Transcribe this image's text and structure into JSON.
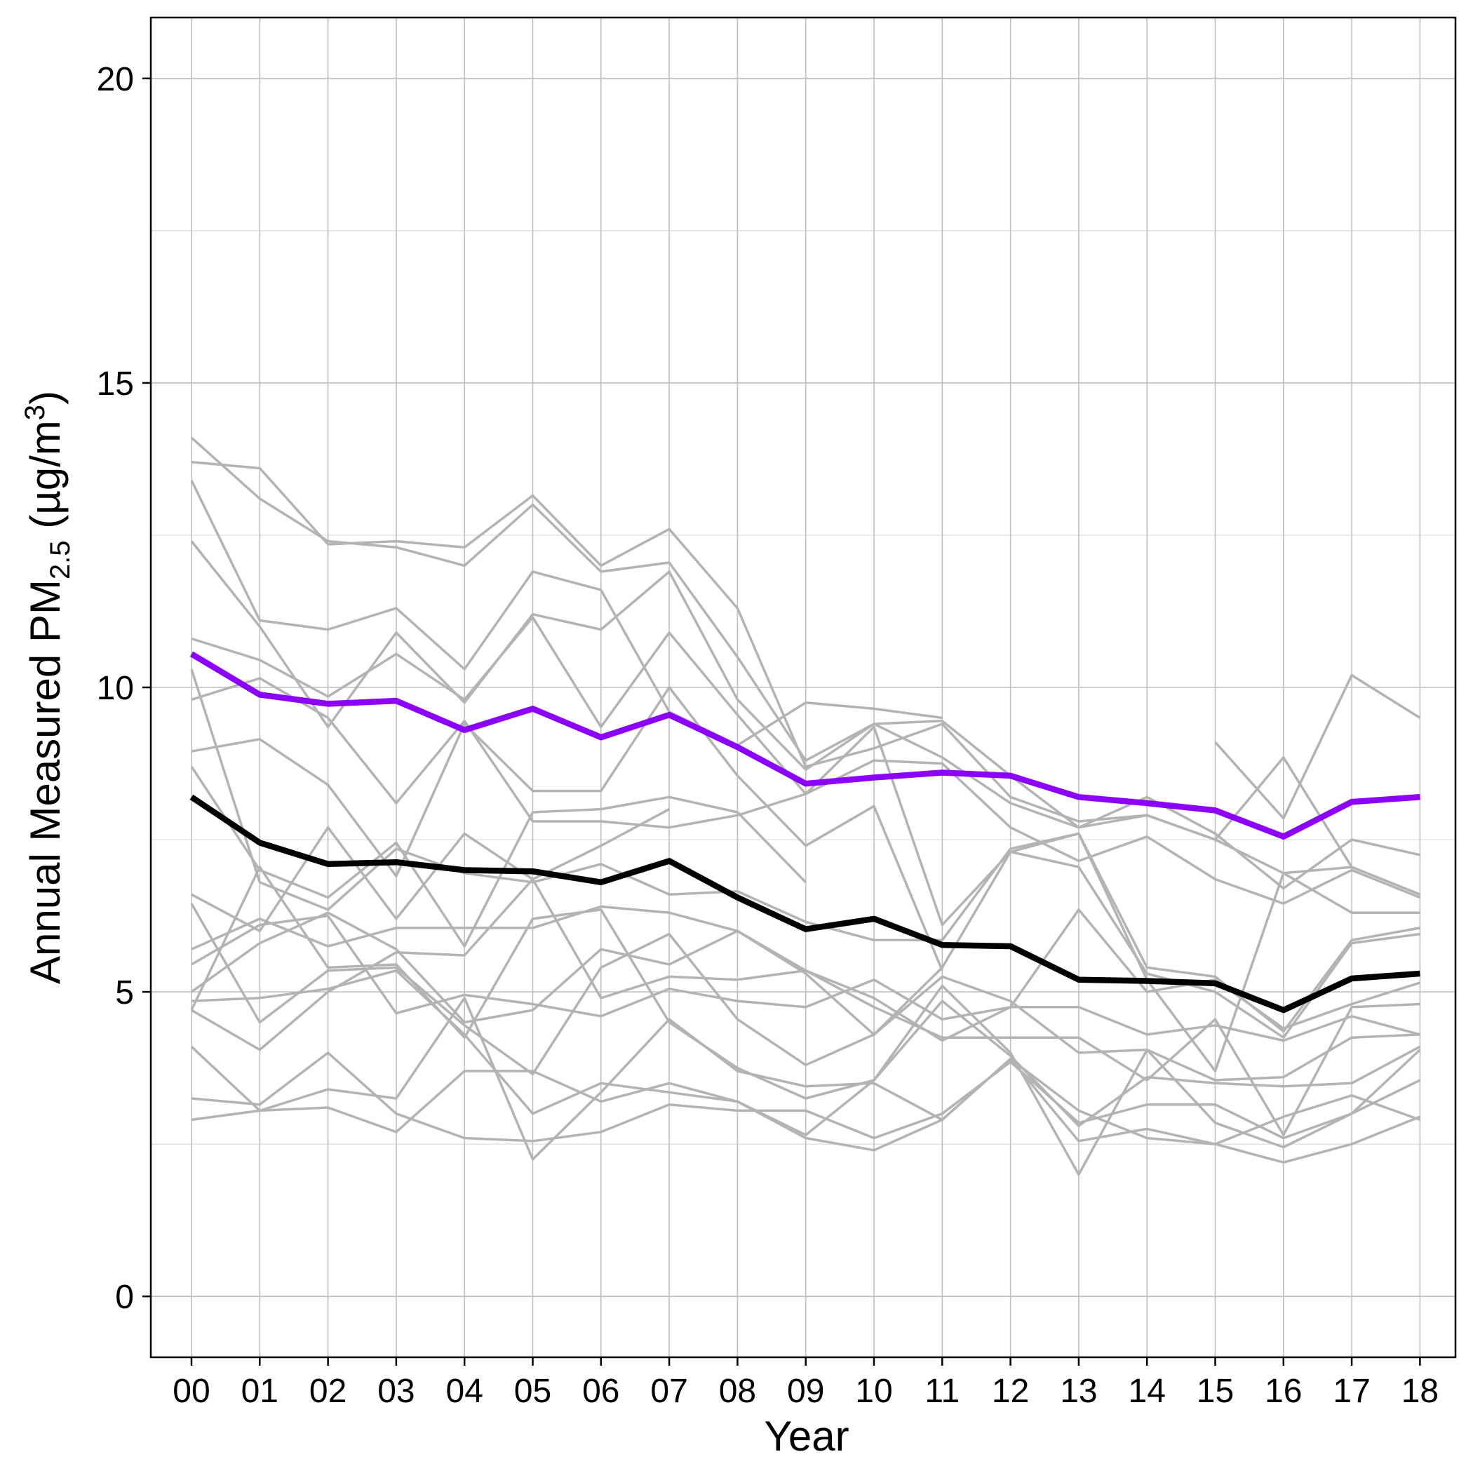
{
  "chart_data": {
    "type": "line",
    "xlabel": "Year",
    "ylabel": "Annual Measured PM",
    "ylabel_sub": "2.5",
    "ylabel_unit_open": " (µg/m",
    "ylabel_unit_sup": "3",
    "ylabel_unit_close": ")",
    "ylim": [
      -1,
      21
    ],
    "yticks": [
      0,
      5,
      10,
      15,
      20
    ],
    "grid": true,
    "x_categories": [
      "00",
      "01",
      "02",
      "03",
      "04",
      "05",
      "06",
      "07",
      "08",
      "09",
      "10",
      "11",
      "12",
      "13",
      "14",
      "15",
      "16",
      "17",
      "18"
    ],
    "colors": {
      "background_series": "#b3b3b3",
      "highlight": "#8b00ff",
      "average": "#000000",
      "grid": "#bfbfbf"
    },
    "highlight_series": {
      "values": [
        10.55,
        9.88,
        9.73,
        9.78,
        9.3,
        9.65,
        9.18,
        9.55,
        9.02,
        8.42,
        8.52,
        8.6,
        8.55,
        8.2,
        8.1,
        7.98,
        7.55,
        8.12,
        8.2
      ]
    },
    "average_series": {
      "values": [
        8.2,
        7.45,
        7.1,
        7.13,
        7.0,
        6.98,
        6.8,
        7.15,
        6.55,
        6.03,
        6.2,
        5.77,
        5.75,
        5.2,
        5.18,
        5.14,
        4.7,
        5.22,
        5.3
      ]
    },
    "background_series": [
      {
        "values": [
          14.1,
          13.1,
          12.4,
          12.3,
          12.0,
          13.0,
          11.9,
          12.05,
          10.5,
          8.8,
          9.4,
          9.45,
          8.55,
          7.7,
          8.2,
          7.6,
          6.7,
          7.5,
          7.25
        ]
      },
      {
        "values": [
          13.7,
          13.6,
          12.35,
          12.4,
          12.3,
          13.15,
          12.0,
          12.6,
          11.3,
          8.7,
          9.0,
          9.4,
          8.2,
          7.8,
          7.9,
          7.5,
          8.85,
          7.05,
          6.6
        ]
      },
      {
        "values": [
          13.4,
          11.1,
          10.95,
          11.3,
          10.3,
          11.9,
          11.6,
          9.6,
          9.05,
          9.75,
          9.65,
          9.5,
          null,
          null,
          null,
          9.1,
          7.85,
          10.2,
          9.5
        ]
      },
      {
        "values": [
          12.4,
          11.0,
          9.35,
          10.9,
          9.75,
          11.2,
          10.95,
          11.9,
          9.8,
          8.65,
          9.4,
          8.85,
          8.1,
          7.7,
          7.9,
          7.5,
          6.95,
          7.05,
          6.6
        ]
      },
      {
        "values": [
          10.8,
          10.45,
          9.85,
          10.55,
          9.8,
          11.15,
          9.35,
          10.9,
          9.55,
          8.25,
          8.8,
          8.75,
          7.7,
          7.15,
          7.55,
          6.85,
          6.45,
          7.0,
          6.55
        ]
      },
      {
        "values": [
          9.8,
          10.15,
          9.5,
          8.1,
          9.45,
          7.8,
          7.8,
          7.7,
          7.9,
          8.25,
          9.35,
          6.1,
          7.3,
          7.6,
          5.2,
          3.7,
          6.95,
          6.3,
          6.3
        ]
      },
      {
        "values": [
          8.95,
          9.15,
          8.4,
          6.9,
          9.4,
          8.3,
          8.3,
          10.0,
          8.55,
          7.4,
          8.05,
          5.35,
          null,
          null,
          null,
          null,
          null,
          null,
          null
        ]
      },
      {
        "values": [
          8.7,
          7.0,
          6.55,
          7.45,
          5.75,
          7.95,
          8.0,
          8.2,
          7.95,
          6.8,
          null,
          null,
          null,
          null,
          null,
          null,
          null,
          null,
          null
        ]
      },
      {
        "values": [
          10.3,
          6.8,
          6.35,
          7.35,
          6.95,
          6.8,
          7.1,
          6.6,
          6.65,
          6.15,
          5.85,
          5.85,
          7.35,
          7.6,
          5.4,
          5.25,
          4.35,
          5.85,
          6.05
        ]
      },
      {
        "values": [
          6.6,
          6.0,
          7.7,
          6.2,
          7.6,
          6.85,
          7.4,
          8.0,
          null,
          null,
          null,
          null,
          null,
          null,
          null,
          null,
          null,
          null,
          null
        ]
      },
      {
        "values": [
          6.45,
          4.5,
          5.35,
          5.4,
          4.45,
          3.65,
          5.4,
          5.95,
          4.55,
          3.8,
          4.3,
          5.4,
          7.3,
          7.05,
          5.3,
          5.0,
          4.25,
          5.8,
          5.95
        ]
      },
      {
        "values": [
          5.7,
          6.2,
          5.75,
          6.05,
          6.05,
          6.05,
          6.4,
          6.3,
          6.0,
          5.35,
          4.9,
          4.2,
          4.75,
          6.35,
          5.0,
          5.2,
          4.4,
          4.8,
          5.15
        ]
      },
      {
        "values": [
          5.45,
          6.1,
          6.25,
          4.65,
          4.95,
          4.8,
          4.6,
          5.05,
          4.85,
          4.75,
          5.2,
          4.55,
          4.75,
          4.75,
          4.3,
          4.45,
          4.2,
          4.6,
          4.3
        ]
      },
      {
        "values": [
          5.0,
          5.8,
          6.3,
          5.7,
          4.5,
          4.7,
          5.7,
          5.45,
          6.0,
          5.3,
          4.3,
          5.25,
          4.85,
          4.0,
          4.05,
          3.55,
          3.6,
          4.25,
          4.3
        ]
      },
      {
        "values": [
          4.7,
          4.05,
          5.0,
          5.65,
          5.6,
          6.85,
          4.9,
          5.25,
          5.2,
          5.35,
          4.75,
          4.25,
          4.25,
          4.25,
          3.55,
          4.55,
          2.65,
          4.75,
          4.8
        ]
      },
      {
        "values": [
          4.85,
          4.9,
          5.05,
          5.35,
          4.3,
          3.0,
          3.5,
          3.35,
          3.2,
          2.65,
          3.55,
          5.1,
          4.0,
          2.0,
          4.05,
          2.85,
          2.45,
          3.0,
          4.05
        ]
      },
      {
        "values": [
          4.7,
          7.05,
          5.4,
          5.45,
          4.25,
          6.2,
          6.35,
          4.5,
          3.75,
          3.25,
          3.55,
          4.85,
          3.95,
          2.8,
          3.6,
          3.5,
          3.45,
          3.5,
          4.1
        ]
      },
      {
        "values": [
          3.25,
          3.15,
          4.0,
          3.0,
          2.6,
          2.55,
          2.7,
          3.15,
          3.05,
          3.05,
          2.6,
          3.0,
          3.85,
          2.85,
          3.15,
          3.15,
          2.6,
          3.0,
          3.55
        ]
      },
      {
        "values": [
          2.9,
          3.05,
          3.1,
          2.7,
          3.7,
          3.7,
          3.2,
          3.5,
          3.2,
          2.6,
          2.4,
          2.9,
          3.9,
          3.05,
          2.6,
          2.5,
          2.95,
          3.3,
          2.9
        ]
      },
      {
        "values": [
          4.1,
          3.05,
          3.4,
          3.25,
          4.9,
          2.25,
          3.35,
          4.55,
          3.7,
          3.45,
          3.5,
          2.9,
          3.9,
          2.55,
          2.75,
          2.5,
          2.2,
          2.5,
          2.95
        ]
      }
    ]
  }
}
